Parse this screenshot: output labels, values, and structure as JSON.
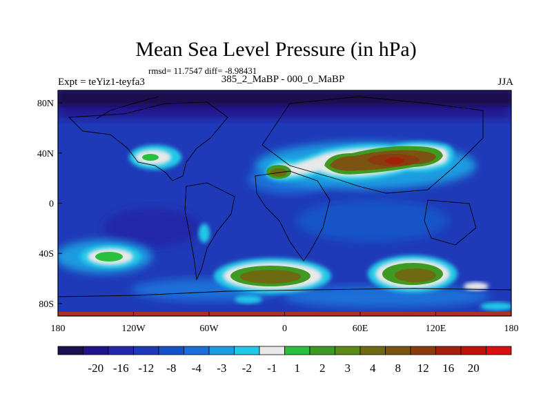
{
  "title": "Mean Sea Level Pressure (in hPa)",
  "stats_text": "rmsd= 11.7547 diff= -8.98431",
  "experiment_label": "Expt = teYiz1-teyfa3",
  "comparison_label": "385_2_MaBP - 000_0_MaBP",
  "season_label": "JJA",
  "map": {
    "lon_range": [
      -180,
      180
    ],
    "lat_range": [
      -90,
      90
    ],
    "background_level_color": "#1f2ea0",
    "x_ticks": [
      {
        "lon": -180,
        "label": "180"
      },
      {
        "lon": -120,
        "label": "120W"
      },
      {
        "lon": -60,
        "label": "60W"
      },
      {
        "lon": 0,
        "label": "0"
      },
      {
        "lon": 60,
        "label": "60E"
      },
      {
        "lon": 120,
        "label": "120E"
      },
      {
        "lon": 180,
        "label": "180"
      }
    ],
    "y_ticks": [
      {
        "lat": 80,
        "label": "80N"
      },
      {
        "lat": 40,
        "label": "40N"
      },
      {
        "lat": 0,
        "label": "0"
      },
      {
        "lat": -40,
        "label": "40S"
      },
      {
        "lat": -80,
        "label": "80S"
      }
    ],
    "anomaly_centers": [
      {
        "name": "north-america-high",
        "lon": -115,
        "lat": 36,
        "peak_level": 2
      },
      {
        "name": "europe-high",
        "lon": -5,
        "lat": 30,
        "peak_level": 4
      },
      {
        "name": "asia-high",
        "lon": 90,
        "lat": 35,
        "peak_level": 12
      },
      {
        "name": "south-pacific-high",
        "lon": -135,
        "lat": -42,
        "peak_level": 2
      },
      {
        "name": "south-atlantic-high",
        "lon": 10,
        "lat": -58,
        "peak_level": 4
      },
      {
        "name": "south-indian-high",
        "lon": 110,
        "lat": -58,
        "peak_level": 8
      }
    ]
  },
  "colorbar": {
    "colors": [
      "#1a1050",
      "#20148a",
      "#2328a8",
      "#1f3ab8",
      "#1554c8",
      "#1c6fd8",
      "#1e9ce0",
      "#22c8e8",
      "#e8e8e8",
      "#2bbf3f",
      "#3e9a22",
      "#5b8a18",
      "#6e6a12",
      "#7a5410",
      "#8a3c0e",
      "#a4200c",
      "#c0100a",
      "#d81010"
    ],
    "labels": [
      "-20",
      "-16",
      "-12",
      "-8",
      "-4",
      "-3",
      "-2",
      "-1",
      "1",
      "2",
      "3",
      "4",
      "8",
      "12",
      "16",
      "20"
    ]
  },
  "colors": {
    "land_outline": "#000000",
    "frame": "#000000",
    "bottom_strip": "#b03020"
  }
}
